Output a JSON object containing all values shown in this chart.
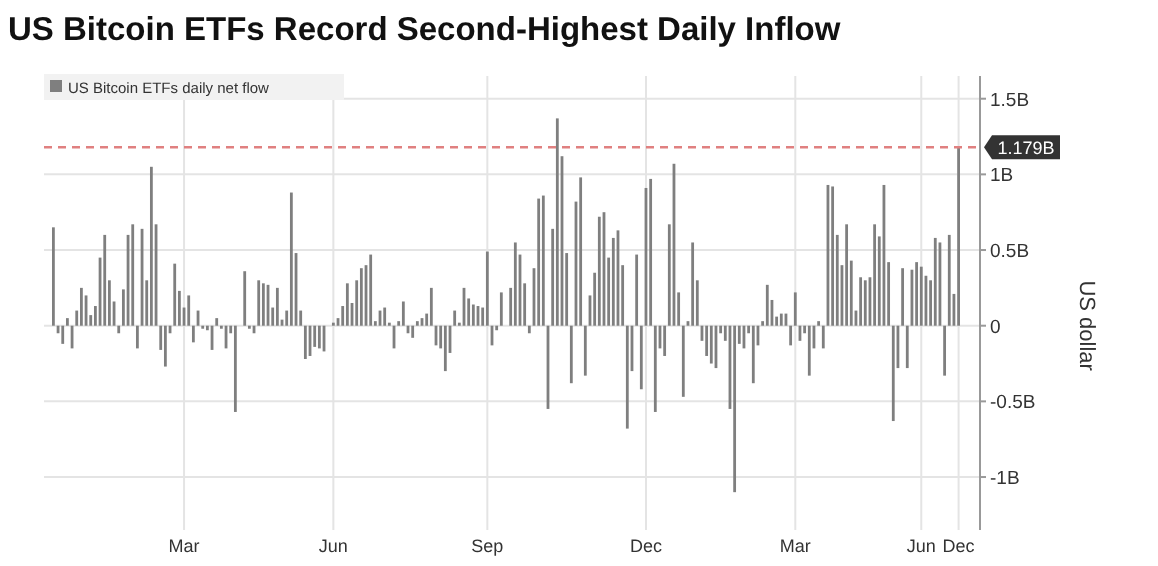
{
  "chart_data": {
    "type": "bar",
    "title": "US Bitcoin ETFs Record Second-Highest Daily Inflow",
    "ylabel": "US dollar",
    "categories": [
      null,
      null,
      null,
      null,
      null,
      null,
      null,
      null,
      null,
      null,
      null,
      null,
      null,
      null,
      null,
      null,
      null,
      null,
      null,
      null,
      null,
      null,
      null,
      null,
      null,
      null,
      null,
      null,
      "Mar",
      null,
      null,
      null,
      null,
      null,
      null,
      null,
      null,
      null,
      null,
      null,
      null,
      null,
      null,
      null,
      null,
      null,
      null,
      null,
      null,
      null,
      null,
      null,
      null,
      null,
      null,
      null,
      null,
      null,
      null,
      null,
      "Jun",
      null,
      null,
      null,
      null,
      null,
      null,
      null,
      null,
      null,
      null,
      null,
      null,
      null,
      null,
      null,
      null,
      null,
      null,
      null,
      null,
      null,
      null,
      null,
      null,
      null,
      null,
      null,
      null,
      null,
      null,
      null,
      null,
      "Sep",
      null,
      null,
      null,
      null,
      null,
      null,
      null,
      null,
      null,
      null,
      null,
      null,
      null,
      null,
      null,
      null,
      null,
      null,
      null,
      null,
      null,
      null,
      null,
      null,
      null,
      null,
      null,
      null,
      null,
      null,
      null,
      null,
      null,
      "Dec",
      null,
      null,
      null,
      null,
      null,
      null,
      null,
      null,
      null,
      null,
      null,
      null,
      null,
      null,
      null,
      null,
      null,
      null,
      null,
      null,
      null,
      null,
      null,
      null,
      null,
      null,
      null,
      null,
      null,
      null,
      null,
      "Mar",
      null,
      null,
      null,
      null,
      null,
      null,
      null,
      null,
      null,
      null,
      null,
      null,
      null,
      null,
      null,
      null,
      null,
      null,
      null,
      null,
      null,
      null,
      null,
      null,
      null,
      null,
      "Jun",
      null,
      null,
      null,
      null,
      null,
      null,
      null,
      "Dec"
    ],
    "series": [
      {
        "name": "US Bitcoin ETFs daily net flow",
        "color": "#7f7f7f",
        "values": [
          0.65,
          -0.05,
          -0.12,
          0.05,
          -0.15,
          0.1,
          0.25,
          0.2,
          0.07,
          0.13,
          0.45,
          0.6,
          0.3,
          0.16,
          -0.05,
          0.24,
          0.6,
          0.67,
          -0.15,
          0.64,
          0.3,
          1.05,
          0.67,
          -0.16,
          -0.27,
          -0.05,
          0.41,
          0.23,
          0.12,
          0.2,
          -0.11,
          0.1,
          -0.02,
          -0.03,
          -0.16,
          0.05,
          -0.02,
          -0.15,
          -0.05,
          -0.57,
          0.0,
          0.36,
          -0.02,
          -0.05,
          0.3,
          0.28,
          0.27,
          0.12,
          0.25,
          0.04,
          0.1,
          0.88,
          0.48,
          0.1,
          -0.22,
          -0.2,
          -0.14,
          -0.15,
          -0.17,
          0.0,
          0.02,
          0.05,
          0.13,
          0.28,
          0.15,
          0.3,
          0.38,
          0.4,
          0.47,
          0.03,
          0.1,
          0.12,
          0.02,
          -0.15,
          0.03,
          0.16,
          -0.05,
          -0.08,
          0.03,
          0.05,
          0.08,
          0.25,
          -0.13,
          -0.15,
          -0.3,
          -0.18,
          0.1,
          0.02,
          0.25,
          0.18,
          0.14,
          0.13,
          0.12,
          0.49,
          -0.13,
          -0.03,
          0.22,
          0.0,
          0.25,
          0.55,
          0.47,
          0.28,
          -0.05,
          0.38,
          0.84,
          0.86,
          -0.55,
          0.64,
          1.37,
          1.12,
          0.48,
          -0.38,
          0.82,
          0.98,
          -0.33,
          0.2,
          0.35,
          0.72,
          0.75,
          0.45,
          0.58,
          0.63,
          0.4,
          -0.68,
          -0.3,
          0.47,
          -0.42,
          0.91,
          0.97,
          -0.57,
          -0.15,
          -0.2,
          0.67,
          1.07,
          0.22,
          -0.47,
          0.03,
          0.55,
          0.3,
          -0.1,
          -0.2,
          -0.25,
          -0.28,
          -0.05,
          -0.1,
          -0.55,
          -1.1,
          -0.12,
          -0.15,
          -0.05,
          -0.38,
          -0.13,
          0.03,
          0.27,
          0.17,
          0.06,
          0.08,
          0.08,
          -0.13,
          0.22,
          -0.1,
          -0.05,
          -0.33,
          -0.15,
          0.03,
          -0.15,
          0.93,
          0.92,
          0.6,
          0.4,
          0.67,
          0.43,
          0.1,
          0.32,
          0.3,
          0.32,
          0.67,
          0.59,
          0.93,
          0.42,
          -0.63,
          -0.28,
          0.38,
          -0.28,
          0.37,
          0.42,
          0.39,
          0.33,
          0.3,
          0.58,
          0.55,
          -0.33,
          0.6,
          0.21,
          1.179
        ]
      }
    ],
    "ylim": [
      -1.35,
      1.65
    ],
    "yticks": [
      {
        "value": -1,
        "label": "-1B"
      },
      {
        "value": -0.5,
        "label": "-0.5B"
      },
      0,
      {
        "value": 0.5,
        "label": "0.5B"
      },
      {
        "value": 1,
        "label": "1B"
      },
      {
        "value": 1.5,
        "label": "1.5B"
      }
    ],
    "ref_lines": [
      {
        "axis": "y",
        "value": 1.179,
        "label": "1.179B",
        "color": "#e08080",
        "line_style": "dashed"
      }
    ],
    "grid": true,
    "legend": "top left"
  }
}
